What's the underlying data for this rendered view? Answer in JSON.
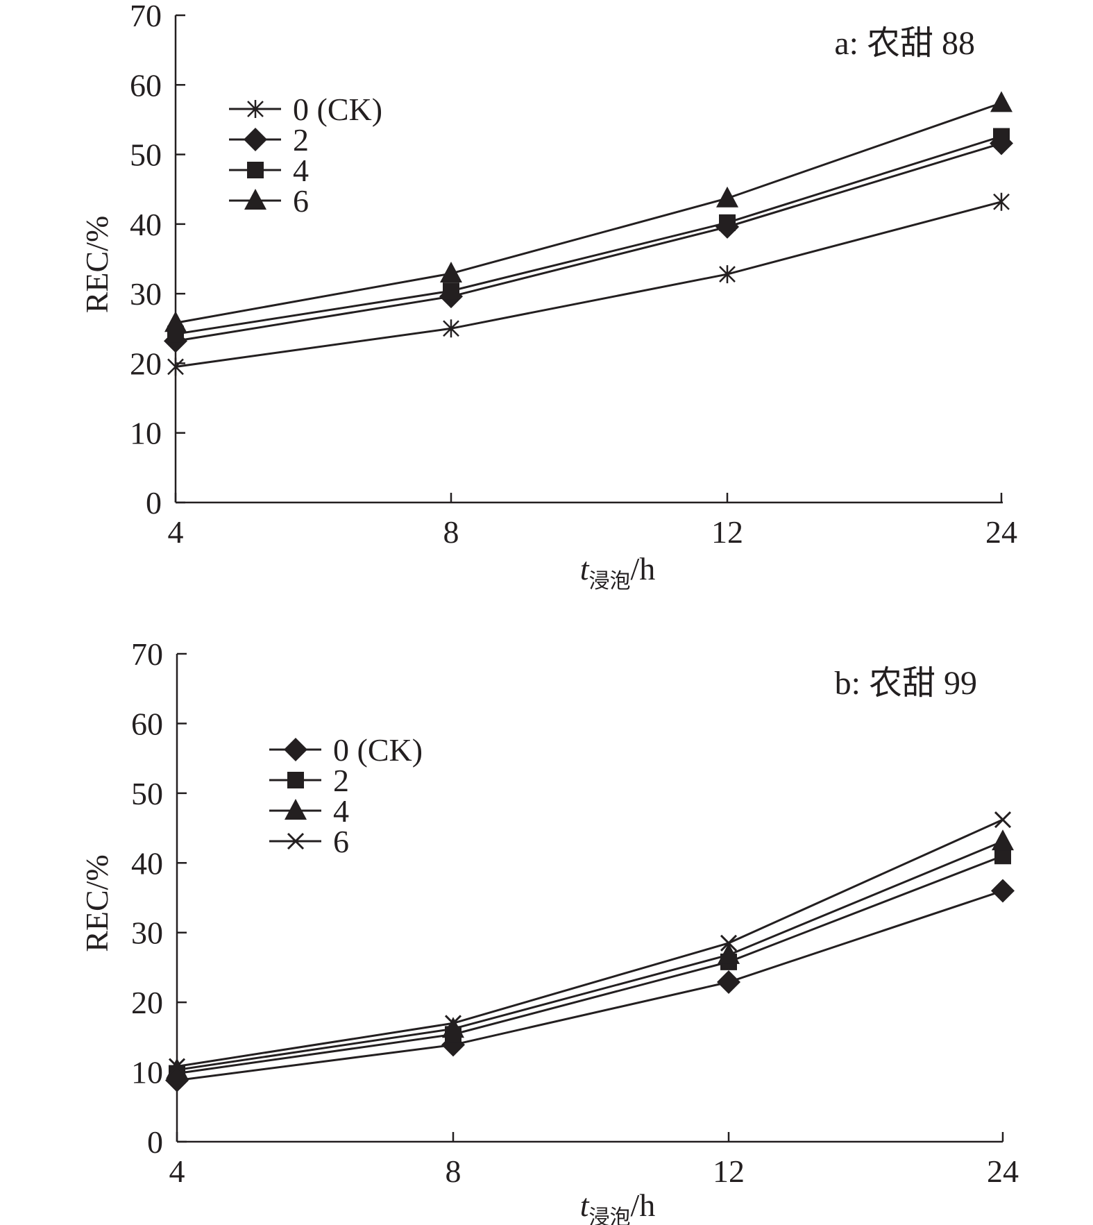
{
  "chart_data": [
    {
      "type": "line",
      "panel_label": "a: 农甜 88",
      "xlabel": {
        "main": "t",
        "sub": "浸泡",
        "unit": "/h"
      },
      "ylabel": "REC/%",
      "categories": [
        "4",
        "8",
        "12",
        "24"
      ],
      "ylim": [
        0,
        70
      ],
      "yticks": [
        0,
        10,
        20,
        30,
        40,
        50,
        60,
        70
      ],
      "grid": false,
      "legend_position": "top-left",
      "series": [
        {
          "name": "0 (CK)",
          "marker": "asterisk",
          "values": [
            19.5,
            25.0,
            32.8,
            43.2
          ]
        },
        {
          "name": "2",
          "marker": "diamond",
          "values": [
            23.2,
            29.6,
            39.6,
            51.6
          ]
        },
        {
          "name": "4",
          "marker": "square",
          "values": [
            24.2,
            30.4,
            40.2,
            52.6
          ]
        },
        {
          "name": "6",
          "marker": "triangle",
          "values": [
            25.8,
            32.9,
            43.7,
            57.4
          ]
        }
      ]
    },
    {
      "type": "line",
      "panel_label": "b: 农甜 99",
      "xlabel": {
        "main": "t",
        "sub": "浸泡",
        "unit": "/h"
      },
      "ylabel": "REC/%",
      "categories": [
        "4",
        "8",
        "12",
        "24"
      ],
      "ylim": [
        0,
        70
      ],
      "yticks": [
        0,
        10,
        20,
        30,
        40,
        50,
        60,
        70
      ],
      "grid": false,
      "legend_position": "top-left",
      "series": [
        {
          "name": "0 (CK)",
          "marker": "diamond",
          "values": [
            8.8,
            13.9,
            22.9,
            36.0
          ]
        },
        {
          "name": "2",
          "marker": "square",
          "values": [
            9.8,
            15.4,
            25.8,
            41.0
          ]
        },
        {
          "name": "4",
          "marker": "triangle",
          "values": [
            10.3,
            16.2,
            26.8,
            43.1
          ]
        },
        {
          "name": "6",
          "marker": "x",
          "values": [
            10.8,
            17.0,
            28.5,
            46.2
          ]
        }
      ]
    }
  ]
}
